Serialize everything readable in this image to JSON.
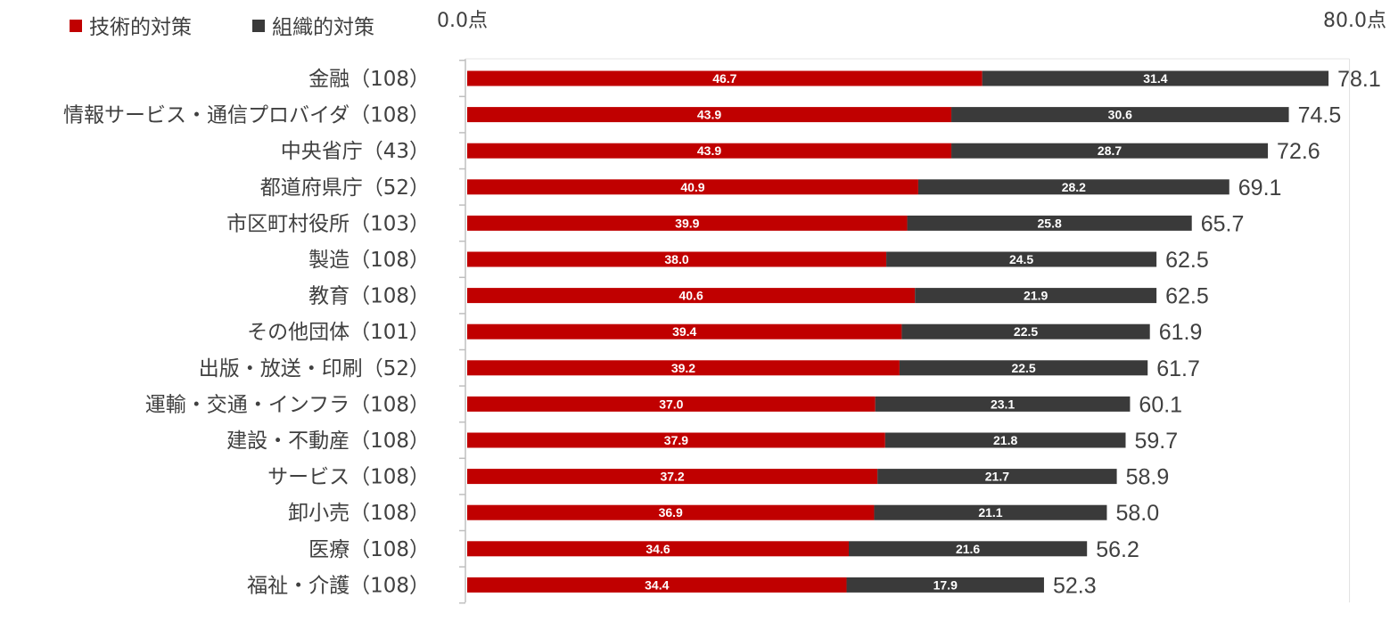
{
  "chart_data": {
    "type": "bar",
    "orientation": "horizontal",
    "stacked": true,
    "categories": [
      "金融（108）",
      "情報サービス・通信プロバイダ（108）",
      "中央省庁（43）",
      "都道府県庁（52）",
      "市区町村役所（103）",
      "製造（108）",
      "教育（108）",
      "その他団体（101）",
      "出版・放送・印刷（52）",
      "運輸・交通・インフラ（108）",
      "建設・不動産（108）",
      "サービス（108）",
      "卸小売（108）",
      "医療（108）",
      "福祉・介護（108）"
    ],
    "series": [
      {
        "name": "技術的対策",
        "color": "#c00000",
        "values": [
          46.7,
          43.9,
          43.9,
          40.9,
          39.9,
          38.0,
          40.6,
          39.4,
          39.2,
          37.0,
          37.9,
          37.2,
          36.9,
          34.6,
          34.4
        ]
      },
      {
        "name": "組織的対策",
        "color": "#3a3a3a",
        "values": [
          31.4,
          30.6,
          28.7,
          28.2,
          25.8,
          24.5,
          21.9,
          22.5,
          22.5,
          23.1,
          21.8,
          21.7,
          21.1,
          21.6,
          17.9
        ]
      }
    ],
    "totals": [
      "78.1",
      "74.5",
      "72.6",
      "69.1",
      "65.7",
      "62.5",
      "62.5",
      "61.9",
      "61.7",
      "60.1",
      "59.7",
      "58.9",
      "58.0",
      "56.2",
      "52.3"
    ],
    "xlim": [
      0,
      80
    ],
    "axis_labels": {
      "min": "0.0点",
      "max": "80.0点"
    },
    "legend_position": "top-left"
  }
}
